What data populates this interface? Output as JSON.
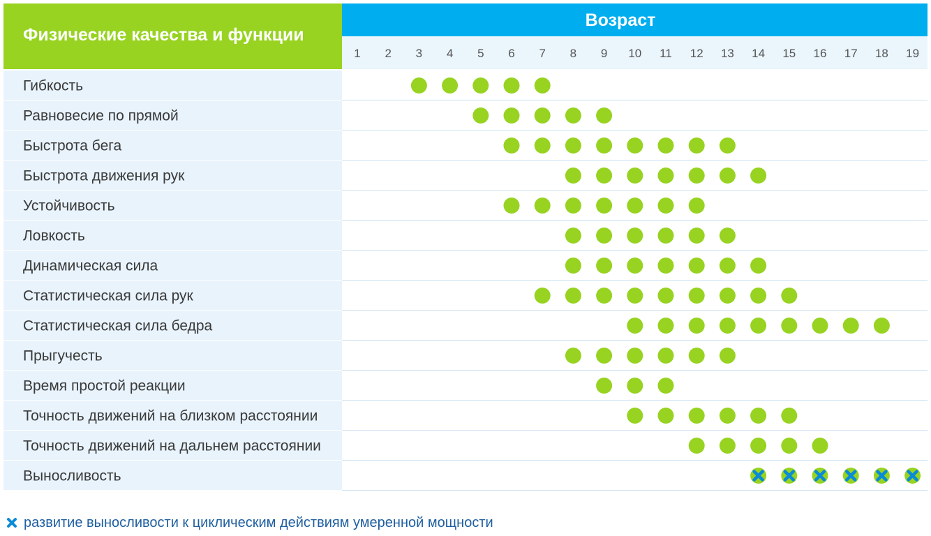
{
  "chart_data": {
    "type": "table",
    "header": {
      "qualities_title": "Физические качества и функции",
      "age_title": "Возраст"
    },
    "ages": [
      "1",
      "2",
      "3",
      "4",
      "5",
      "6",
      "7",
      "8",
      "9",
      "10",
      "11",
      "12",
      "13",
      "14",
      "15",
      "16",
      "17",
      "18",
      "19"
    ],
    "rows": [
      {
        "label": "Гибкость",
        "ages": [
          3,
          4,
          5,
          6,
          7
        ]
      },
      {
        "label": "Равновесие по прямой",
        "ages": [
          5,
          6,
          7,
          8,
          9
        ]
      },
      {
        "label": "Быстрота бега",
        "ages": [
          6,
          7,
          8,
          9,
          10,
          11,
          12,
          13
        ]
      },
      {
        "label": "Быстрота движения рук",
        "ages": [
          8,
          9,
          10,
          11,
          12,
          13,
          14
        ]
      },
      {
        "label": "Устойчивость",
        "ages": [
          6,
          7,
          8,
          9,
          10,
          11,
          12
        ]
      },
      {
        "label": "Ловкость",
        "ages": [
          8,
          9,
          10,
          11,
          12,
          13
        ]
      },
      {
        "label": "Динамическая сила",
        "ages": [
          8,
          9,
          10,
          11,
          12,
          13,
          14
        ]
      },
      {
        "label": "Статистическая сила рук",
        "ages": [
          7,
          8,
          9,
          10,
          11,
          12,
          13,
          14,
          15
        ]
      },
      {
        "label": "Статистическая сила бедра",
        "ages": [
          10,
          11,
          12,
          13,
          14,
          15,
          16,
          17,
          18
        ]
      },
      {
        "label": "Прыгучесть",
        "ages": [
          8,
          9,
          10,
          11,
          12,
          13
        ]
      },
      {
        "label": "Время простой реакции",
        "ages": [
          9,
          10,
          11
        ]
      },
      {
        "label": "Точность движений на близком расстоянии",
        "ages": [
          10,
          11,
          12,
          13,
          14,
          15
        ]
      },
      {
        "label": "Точность движений на дальнем расстоянии",
        "ages": [
          12,
          13,
          14,
          15,
          16
        ]
      },
      {
        "label": "Выносливость",
        "ages": [
          14,
          15,
          16,
          17,
          18,
          19
        ],
        "marker": "cross"
      }
    ],
    "legend": {
      "cross_label": "развитие выносливости к циклическим действиям умеренной мощности"
    },
    "colors": {
      "green": "#97d320",
      "blue_header": "#00aeef",
      "label_column_bg": "#e8f3fc",
      "age_row_bg": "#eaf5fc",
      "cross": "#0a8bd6",
      "legend_text": "#1f5fa0"
    }
  }
}
